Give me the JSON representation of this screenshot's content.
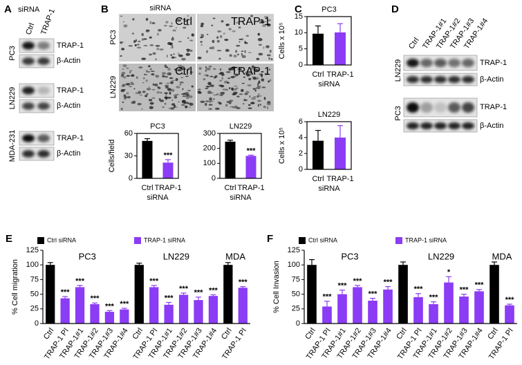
{
  "figure": {
    "panels": [
      "A",
      "B",
      "C",
      "D",
      "E",
      "F"
    ],
    "A": {
      "header": "siRNA",
      "lanes": [
        "Ctrl",
        "TRAP-1"
      ],
      "cell_lines": [
        "PC3",
        "LN229",
        "MDA-231"
      ],
      "bands": [
        "TRAP-1",
        "β-Actin"
      ]
    },
    "B": {
      "header": "siRNA",
      "rows": [
        "PC3",
        "LN229"
      ],
      "columns": [
        "Ctrl",
        "TRAP-1"
      ]
    },
    "D": {
      "lanes": [
        "Ctrl",
        "TRAP-1#1",
        "TRAP-1#2",
        "TRAP-1#3",
        "TRAP-1#4"
      ],
      "cell_lines": [
        "LN229",
        "PC3"
      ],
      "bands": [
        "TRAP-1",
        "β-Actin"
      ]
    }
  },
  "chart_data": [
    {
      "type": "bar",
      "title": "PC3",
      "ylabel": "Cells/field",
      "xlabel": "siRNA",
      "categories": [
        "Ctrl",
        "TRAP-1"
      ],
      "values": [
        50,
        21
      ],
      "errors": [
        3,
        4
      ],
      "significance": [
        null,
        "***"
      ],
      "colors": [
        "#000000",
        "#8b3cf5"
      ],
      "ylim": [
        0,
        60
      ],
      "yticks": [
        0,
        30,
        60
      ]
    },
    {
      "type": "bar",
      "title": "LN229",
      "xlabel": "siRNA",
      "categories": [
        "Ctrl",
        "TRAP-1"
      ],
      "values": [
        245,
        150
      ],
      "errors": [
        10,
        5
      ],
      "significance": [
        null,
        "***"
      ],
      "colors": [
        "#000000",
        "#8b3cf5"
      ],
      "ylim": [
        0,
        300
      ],
      "yticks": [
        0,
        100,
        200,
        300
      ]
    },
    {
      "type": "bar",
      "title": "PC3",
      "ylabel": "Cells x 10⁵",
      "xlabel": "siRNA",
      "categories": [
        "Ctrl",
        "TRAP-1"
      ],
      "values": [
        9.7,
        10.1
      ],
      "errors": [
        2.4,
        2.7
      ],
      "colors": [
        "#000000",
        "#8b3cf5"
      ],
      "ylim": [
        0,
        15
      ],
      "yticks": [
        0,
        5,
        10,
        15
      ]
    },
    {
      "type": "bar",
      "title": "LN229",
      "ylabel": "Cells x 10⁵",
      "xlabel": "siRNA",
      "categories": [
        "Ctrl",
        "TRAP-1"
      ],
      "values": [
        3.6,
        4.0
      ],
      "errors": [
        1.3,
        1.5
      ],
      "colors": [
        "#000000",
        "#8b3cf5"
      ],
      "ylim": [
        0,
        6
      ],
      "yticks": [
        0,
        2,
        4,
        6
      ]
    },
    {
      "type": "bar",
      "ylabel": "% Cell migration",
      "group_labels": [
        "PC3",
        "LN229",
        "MDA"
      ],
      "categories": [
        "Ctrl",
        "TRAP-1 PI",
        "TRAP-1#1",
        "TRAP-1#2",
        "TRAP-1#3",
        "TRAP-1#4",
        "Ctrl",
        "TRAP-1 PI",
        "TRAP-1#1",
        "TRAP-1#2",
        "TRAP-1#3",
        "TRAP-1#4",
        "Ctrl",
        "TRAP-1 PI"
      ],
      "series": [
        {
          "name": "Ctrl siRNA",
          "color": "#000000",
          "values": [
            100,
            null,
            null,
            null,
            null,
            null,
            100,
            null,
            null,
            null,
            null,
            null,
            100,
            null
          ],
          "errors": [
            4,
            null,
            null,
            null,
            null,
            null,
            3,
            null,
            null,
            null,
            null,
            null,
            4,
            null
          ]
        },
        {
          "name": "TRAP-1 siRNA",
          "color": "#8b3cf5",
          "values": [
            null,
            43,
            62,
            33,
            20,
            24,
            null,
            62,
            32,
            49,
            40,
            47,
            null,
            61
          ],
          "errors": [
            null,
            3,
            3,
            2,
            2,
            2,
            null,
            3,
            4,
            3,
            5,
            2,
            null,
            2
          ],
          "significance": [
            null,
            "***",
            "***",
            "***",
            "***",
            "***",
            null,
            "***",
            "***",
            "***",
            "***",
            "***",
            null,
            "***"
          ]
        }
      ],
      "ylim": [
        0,
        125
      ],
      "yticks": [
        0,
        25,
        50,
        75,
        100,
        125
      ]
    },
    {
      "type": "bar",
      "ylabel": "% Cell Invasion",
      "group_labels": [
        "PC3",
        "LN229",
        "MDA"
      ],
      "categories": [
        "Ctrl",
        "TRAP-1 PI",
        "TRAP-1#1",
        "TRAP-1#2",
        "TRAP-1#3",
        "TRAP-1#4",
        "Ctrl",
        "TRAP-1 PI",
        "TRAP-1#1",
        "TRAP-1#2",
        "TRAP-1#3",
        "TRAP-1#4",
        "Ctrl",
        "TRAP-1 PI"
      ],
      "series": [
        {
          "name": "Ctrl siRNA",
          "color": "#000000",
          "values": [
            100,
            null,
            null,
            null,
            null,
            null,
            100,
            null,
            null,
            null,
            null,
            null,
            100,
            null
          ],
          "errors": [
            9,
            null,
            null,
            null,
            null,
            null,
            5,
            null,
            null,
            null,
            null,
            null,
            5,
            null
          ]
        },
        {
          "name": "TRAP-1 siRNA",
          "color": "#8b3cf5",
          "values": [
            null,
            29,
            50,
            62,
            39,
            58,
            null,
            45,
            33,
            70,
            46,
            55,
            null,
            31
          ],
          "errors": [
            null,
            9,
            7,
            3,
            4,
            5,
            null,
            6,
            4,
            10,
            4,
            3,
            null,
            2
          ],
          "significance": [
            null,
            "***",
            "***",
            "***",
            "***",
            "***",
            null,
            "***",
            "***",
            "*",
            "***",
            "***",
            null,
            "***"
          ]
        }
      ],
      "ylim": [
        0,
        125
      ],
      "yticks": [
        0,
        25,
        50,
        75,
        100,
        125
      ]
    }
  ]
}
